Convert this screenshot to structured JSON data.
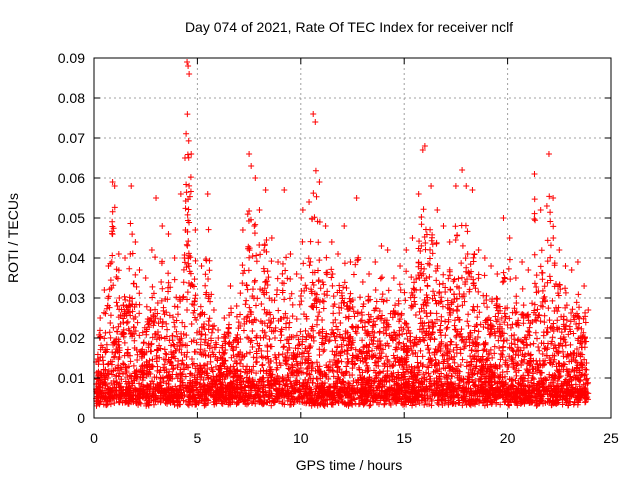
{
  "chart_data": {
    "type": "scatter",
    "title": "Day 074 of 2021, Rate Of TEC Index for receiver nclf",
    "xlabel": "GPS time / hours",
    "ylabel": "ROTI / TECUs",
    "xlim": [
      0,
      25
    ],
    "ylim": [
      0,
      0.09
    ],
    "xticks": [
      "0",
      "5",
      "10",
      "15",
      "20",
      "25"
    ],
    "yticks": [
      "0",
      "0.01",
      "0.02",
      "0.03",
      "0.04",
      "0.05",
      "0.06",
      "0.07",
      "0.08",
      "0.09"
    ],
    "grid": true,
    "marker": "+",
    "color": "#ff0000",
    "series": [
      {
        "x": [
          0.1,
          0.3,
          0.5,
          0.7,
          0.9,
          1.0,
          1.2,
          1.5,
          1.8,
          2.0,
          2.2,
          2.5,
          2.8,
          3.0,
          3.3,
          3.6,
          3.9,
          4.2,
          4.4,
          4.5,
          4.55,
          4.6,
          4.7,
          4.9,
          5.2,
          5.5,
          5.8,
          6.0,
          6.3,
          6.6,
          6.9,
          7.2,
          7.5,
          7.6,
          7.8,
          8.0,
          8.3,
          8.6,
          8.9,
          9.2,
          9.5,
          9.8,
          10.1,
          10.4,
          10.6,
          10.7,
          10.9,
          11.2,
          11.5,
          11.8,
          12.1,
          12.4,
          12.7,
          13.0,
          13.3,
          13.6,
          13.9,
          14.2,
          14.5,
          14.8,
          15.1,
          15.4,
          15.7,
          15.9,
          16.0,
          16.3,
          16.6,
          16.9,
          17.2,
          17.5,
          17.8,
          18.0,
          18.3,
          18.6,
          18.9,
          19.2,
          19.5,
          19.8,
          20.1,
          20.4,
          20.7,
          21.0,
          21.3,
          21.6,
          21.9,
          22.0,
          22.2,
          22.5,
          22.8,
          23.1,
          23.4,
          23.7,
          23.9
        ],
        "y": [
          0.014,
          0.025,
          0.032,
          0.038,
          0.059,
          0.058,
          0.041,
          0.04,
          0.058,
          0.044,
          0.037,
          0.035,
          0.042,
          0.055,
          0.048,
          0.046,
          0.04,
          0.056,
          0.065,
          0.089,
          0.088,
          0.086,
          0.066,
          0.047,
          0.038,
          0.056,
          0.027,
          0.022,
          0.025,
          0.033,
          0.028,
          0.047,
          0.066,
          0.063,
          0.06,
          0.052,
          0.057,
          0.045,
          0.039,
          0.057,
          0.041,
          0.036,
          0.052,
          0.054,
          0.076,
          0.074,
          0.059,
          0.048,
          0.044,
          0.041,
          0.048,
          0.039,
          0.055,
          0.034,
          0.036,
          0.039,
          0.043,
          0.042,
          0.035,
          0.038,
          0.042,
          0.045,
          0.056,
          0.067,
          0.068,
          0.058,
          0.052,
          0.048,
          0.044,
          0.058,
          0.062,
          0.058,
          0.057,
          0.042,
          0.04,
          0.038,
          0.036,
          0.05,
          0.045,
          0.035,
          0.039,
          0.037,
          0.061,
          0.052,
          0.053,
          0.066,
          0.055,
          0.042,
          0.038,
          0.037,
          0.039,
          0.033,
          0.027
        ]
      }
    ]
  }
}
